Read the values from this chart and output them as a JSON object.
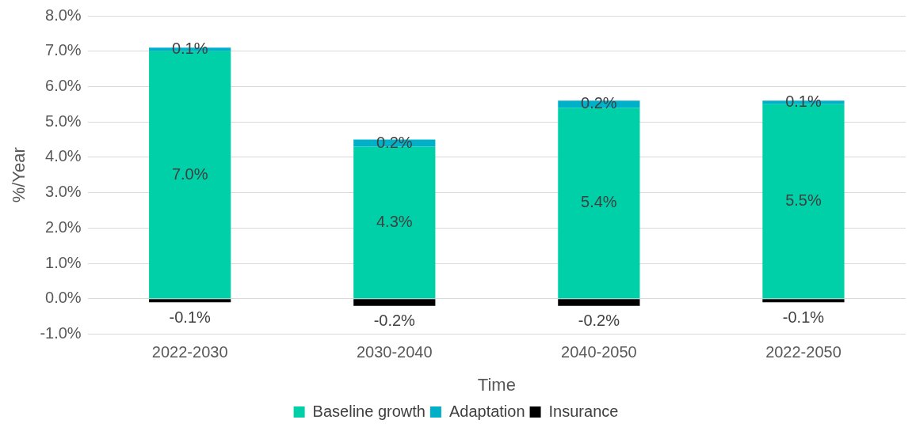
{
  "chart_data": {
    "type": "bar",
    "stacked": true,
    "xlabel": "Time",
    "ylabel": "%/Year",
    "categories": [
      "2022-2030",
      "2030-2040",
      "2040-2050",
      "2022-2050"
    ],
    "series": [
      {
        "name": "Baseline growth",
        "color": "#00d0a8",
        "values": [
          7.0,
          4.3,
          5.4,
          5.5
        ],
        "value_labels": [
          "7.0%",
          "4.3%",
          "5.4%",
          "5.5%"
        ]
      },
      {
        "name": "Adaptation",
        "color": "#00b0c8",
        "values": [
          0.1,
          0.2,
          0.2,
          0.1
        ],
        "value_labels": [
          "0.1%",
          "0.2%",
          "0.2%",
          "0.1%"
        ]
      },
      {
        "name": "Insurance",
        "color": "#000000",
        "values": [
          -0.1,
          -0.2,
          -0.2,
          -0.1
        ],
        "value_labels": [
          "-0.1%",
          "-0.2%",
          "-0.2%",
          "-0.1%"
        ]
      }
    ],
    "ylim": [
      -1,
      8
    ],
    "yticks": [
      {
        "value": -1,
        "label": "-1.0%"
      },
      {
        "value": 0,
        "label": "0.0%"
      },
      {
        "value": 1,
        "label": "1.0%"
      },
      {
        "value": 2,
        "label": "2.0%"
      },
      {
        "value": 3,
        "label": "3.0%"
      },
      {
        "value": 4,
        "label": "4.0%"
      },
      {
        "value": 5,
        "label": "5.0%"
      },
      {
        "value": 6,
        "label": "6.0%"
      },
      {
        "value": 7,
        "label": "7.0%"
      },
      {
        "value": 8,
        "label": "8.0%"
      }
    ],
    "grid": "y",
    "legend": "bottom"
  }
}
